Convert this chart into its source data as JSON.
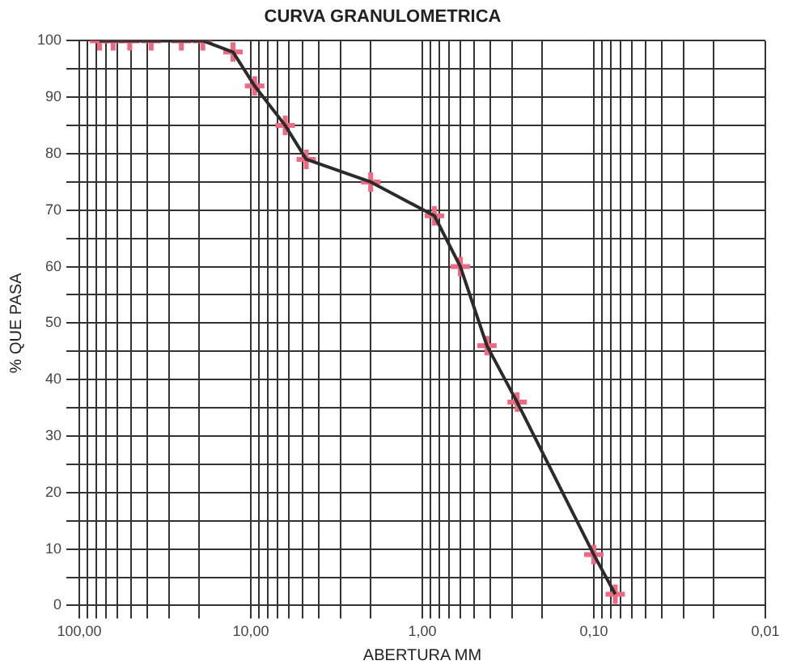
{
  "chart_data": {
    "type": "line",
    "title": "CURVA GRANULOMETRICA",
    "xlabel": "ABERTURA MM",
    "ylabel": "% QUE PASA",
    "log": "x",
    "grid": true,
    "legend": false,
    "xlim": [
      100,
      0.01
    ],
    "ylim": [
      0,
      100
    ],
    "xticks": [
      {
        "value": 100,
        "label": "100,00"
      },
      {
        "value": 90,
        "label": null
      },
      {
        "value": 80,
        "label": null
      },
      {
        "value": 70,
        "label": null
      },
      {
        "value": 60,
        "label": null
      },
      {
        "value": 50,
        "label": null
      },
      {
        "value": 40,
        "label": null
      },
      {
        "value": 30,
        "label": null
      },
      {
        "value": 20,
        "label": null
      },
      {
        "value": 10,
        "label": "10,00"
      },
      {
        "value": 9,
        "label": null
      },
      {
        "value": 8,
        "label": null
      },
      {
        "value": 7,
        "label": null
      },
      {
        "value": 6,
        "label": null
      },
      {
        "value": 5,
        "label": null
      },
      {
        "value": 4,
        "label": null
      },
      {
        "value": 3,
        "label": null
      },
      {
        "value": 2,
        "label": null
      },
      {
        "value": 1,
        "label": "1,00"
      },
      {
        "value": 0.9,
        "label": null
      },
      {
        "value": 0.8,
        "label": null
      },
      {
        "value": 0.7,
        "label": null
      },
      {
        "value": 0.6,
        "label": null
      },
      {
        "value": 0.5,
        "label": null
      },
      {
        "value": 0.4,
        "label": null
      },
      {
        "value": 0.3,
        "label": null
      },
      {
        "value": 0.2,
        "label": null
      },
      {
        "value": 0.1,
        "label": "0,10"
      },
      {
        "value": 0.09,
        "label": null
      },
      {
        "value": 0.08,
        "label": null
      },
      {
        "value": 0.07,
        "label": null
      },
      {
        "value": 0.06,
        "label": null
      },
      {
        "value": 0.05,
        "label": null
      },
      {
        "value": 0.04,
        "label": null
      },
      {
        "value": 0.03,
        "label": null
      },
      {
        "value": 0.02,
        "label": null
      },
      {
        "value": 0.01,
        "label": "0,01"
      }
    ],
    "yticks": [
      0,
      {
        "value": 5,
        "label": null
      },
      10,
      {
        "value": 15,
        "label": null
      },
      20,
      {
        "value": 25,
        "label": null
      },
      30,
      {
        "value": 35,
        "label": null
      },
      40,
      {
        "value": 45,
        "label": null
      },
      50,
      {
        "value": 55,
        "label": null
      },
      60,
      {
        "value": 65,
        "label": null
      },
      70,
      {
        "value": 75,
        "label": null
      },
      80,
      {
        "value": 85,
        "label": null
      },
      90,
      {
        "value": 95,
        "label": null
      },
      100
    ],
    "x": [
      76.2,
      63.5,
      50.8,
      38.1,
      25.4,
      19.05,
      12.7,
      9.5,
      6.3,
      4.75,
      2,
      0.85,
      0.6,
      0.42,
      0.28,
      0.1,
      0.075
    ],
    "series": [
      {
        "color": "#2b2b2b",
        "marker": "none",
        "values": [
          100,
          100,
          100,
          100,
          100,
          100,
          98,
          92,
          85,
          79,
          75,
          69,
          60,
          46,
          36,
          9,
          2
        ]
      },
      {
        "type": "scatter",
        "color": "#ee6a82",
        "marker": "cross",
        "values": [
          100,
          100,
          100,
          100,
          100,
          100,
          98,
          92,
          85,
          79,
          75,
          69,
          60,
          46,
          36,
          9,
          2
        ]
      }
    ]
  }
}
